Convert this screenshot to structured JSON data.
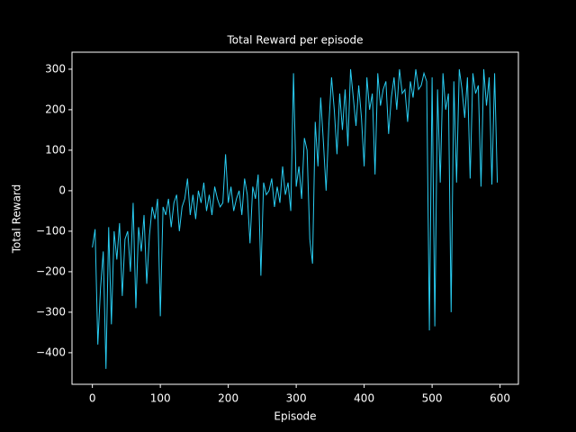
{
  "chart_data": {
    "type": "line",
    "title": "Total Reward per episode",
    "xlabel": "Episode",
    "ylabel": "Total Reward",
    "x": [
      0,
      4,
      8,
      12,
      16,
      20,
      24,
      28,
      32,
      36,
      40,
      44,
      48,
      52,
      56,
      60,
      64,
      68,
      72,
      76,
      80,
      84,
      88,
      92,
      96,
      100,
      104,
      108,
      112,
      116,
      120,
      124,
      128,
      132,
      136,
      140,
      144,
      148,
      152,
      156,
      160,
      164,
      168,
      172,
      176,
      180,
      184,
      188,
      192,
      196,
      200,
      204,
      208,
      212,
      216,
      220,
      224,
      228,
      232,
      236,
      240,
      244,
      248,
      252,
      256,
      260,
      264,
      268,
      272,
      276,
      280,
      284,
      288,
      292,
      296,
      300,
      304,
      308,
      312,
      316,
      320,
      324,
      328,
      332,
      336,
      340,
      344,
      348,
      352,
      356,
      360,
      364,
      368,
      372,
      376,
      380,
      384,
      388,
      392,
      396,
      400,
      404,
      408,
      412,
      416,
      420,
      424,
      428,
      432,
      436,
      440,
      444,
      448,
      452,
      456,
      460,
      464,
      468,
      472,
      476,
      480,
      484,
      488,
      492,
      496,
      500,
      504,
      508,
      512,
      516,
      520,
      524,
      528,
      532,
      536,
      540,
      544,
      548,
      552,
      556,
      560,
      564,
      568,
      572,
      576,
      580,
      584,
      588,
      592,
      596
    ],
    "series": [
      {
        "name": "Total Reward",
        "color": "#29cdf2",
        "values": [
          -140,
          -95,
          -380,
          -240,
          -150,
          -440,
          -90,
          -330,
          -100,
          -170,
          -80,
          -260,
          -120,
          -100,
          -200,
          -30,
          -290,
          -90,
          -150,
          -60,
          -230,
          -110,
          -40,
          -70,
          -20,
          -310,
          -40,
          -60,
          -20,
          -90,
          -30,
          -10,
          -100,
          -40,
          -20,
          30,
          -60,
          -10,
          -70,
          0,
          -30,
          20,
          -50,
          -10,
          -60,
          10,
          -20,
          -40,
          -30,
          90,
          -30,
          10,
          -50,
          -20,
          0,
          -60,
          30,
          -10,
          -130,
          10,
          -20,
          40,
          -210,
          20,
          -10,
          0,
          30,
          -40,
          10,
          -30,
          60,
          -10,
          20,
          -50,
          290,
          10,
          60,
          -20,
          130,
          100,
          -120,
          -180,
          170,
          60,
          230,
          120,
          0,
          160,
          280,
          200,
          90,
          240,
          150,
          250,
          110,
          300,
          230,
          160,
          260,
          180,
          60,
          280,
          200,
          240,
          40,
          290,
          210,
          250,
          270,
          140,
          230,
          280,
          200,
          300,
          240,
          250,
          170,
          270,
          230,
          300,
          250,
          260,
          290,
          270,
          -345,
          280,
          -335,
          250,
          20,
          290,
          200,
          240,
          -300,
          270,
          20,
          300,
          250,
          180,
          280,
          30,
          290,
          240,
          260,
          10,
          300,
          210,
          280,
          15,
          290,
          20
        ]
      }
    ],
    "xlim": [
      -30,
      627
    ],
    "ylim": [
      -478,
      342
    ],
    "xticks": [
      0,
      100,
      200,
      300,
      400,
      500,
      600
    ],
    "yticks": [
      {
        "value": -400,
        "label": "−400"
      },
      {
        "value": -300,
        "label": "−300"
      },
      {
        "value": -200,
        "label": "−200"
      },
      {
        "value": -100,
        "label": "−100"
      },
      0,
      100,
      200,
      300
    ]
  }
}
